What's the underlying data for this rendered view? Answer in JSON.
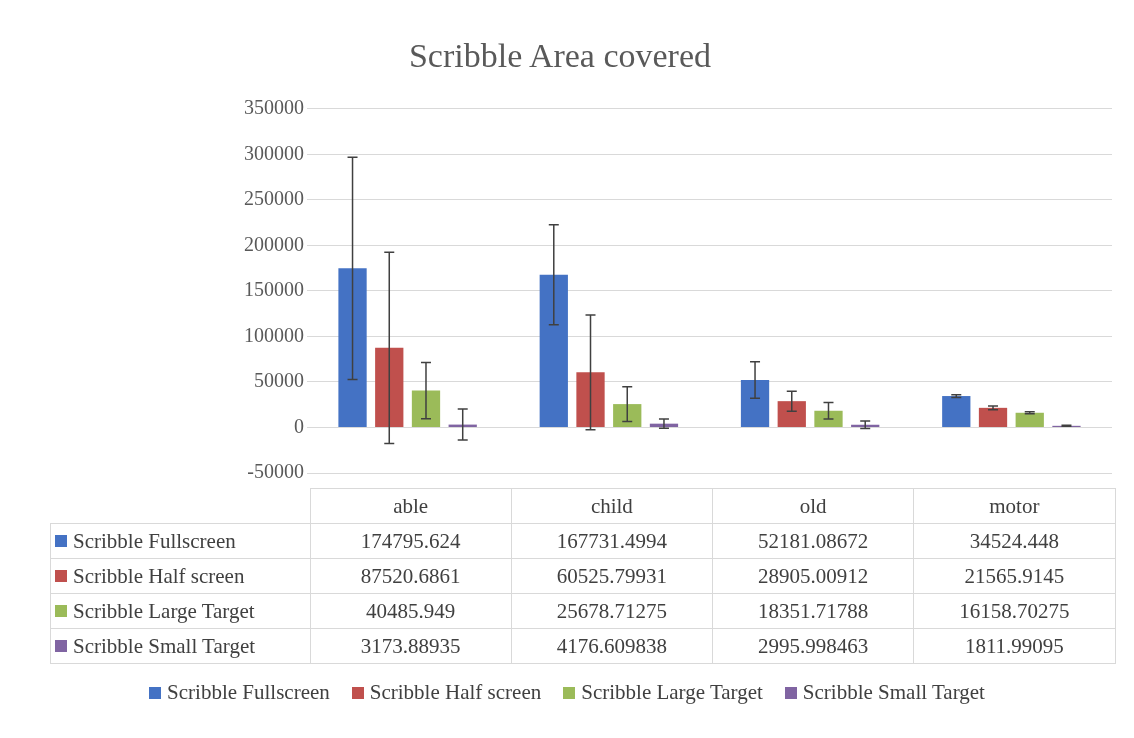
{
  "chart_data": {
    "type": "bar",
    "title": "Scribble Area covered",
    "categories": [
      "able",
      "child",
      "old",
      "motor"
    ],
    "series": [
      {
        "name": "Scribble Fullscreen",
        "color": "#4472c4",
        "values": [
          174795.624,
          167731.4994,
          52181.08672,
          34524.448
        ],
        "errors": [
          122000,
          55000,
          20000,
          1500
        ]
      },
      {
        "name": "Scribble Half screen",
        "color": "#c0504d",
        "values": [
          87520.6861,
          60525.79931,
          28905.00912,
          21565.9145
        ],
        "errors": [
          105000,
          63000,
          11000,
          2000
        ]
      },
      {
        "name": "Scribble Large Target",
        "color": "#9bbb59",
        "values": [
          40485.949,
          25678.71275,
          18351.71788,
          16158.70275
        ],
        "errors": [
          31000,
          19000,
          9000,
          1000
        ]
      },
      {
        "name": "Scribble Small Target",
        "color": "#8064a2",
        "values": [
          3173.88935,
          4176.609838,
          2995.998463,
          1811.99095
        ],
        "errors": [
          17000,
          5000,
          4000,
          500
        ]
      }
    ],
    "ylim": [
      -50000,
      350000
    ],
    "yticks": [
      -50000,
      0,
      50000,
      100000,
      150000,
      200000,
      250000,
      300000,
      350000
    ],
    "grid": "y",
    "legend": "bottom",
    "data_labels": true
  }
}
